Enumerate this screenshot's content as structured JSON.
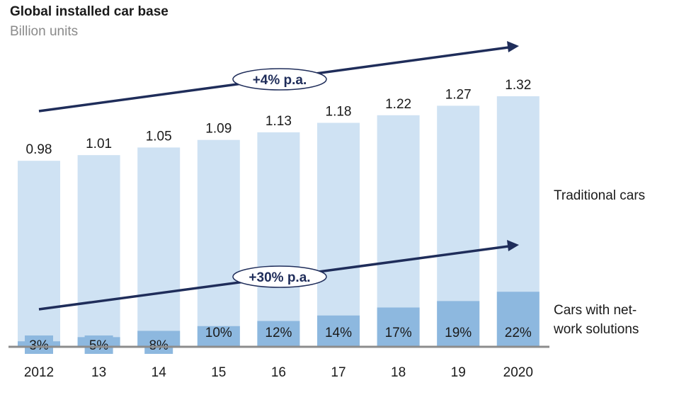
{
  "header": {
    "title": "Global installed car base",
    "subtitle": "Billion units"
  },
  "chart_data": {
    "type": "bar",
    "stacked": true,
    "categories": [
      "2012",
      "13",
      "14",
      "15",
      "16",
      "17",
      "18",
      "19",
      "2020"
    ],
    "totals": [
      0.98,
      1.01,
      1.05,
      1.09,
      1.13,
      1.18,
      1.22,
      1.27,
      1.32
    ],
    "total_labels": [
      "0.98",
      "1.01",
      "1.05",
      "1.09",
      "1.13",
      "1.18",
      "1.22",
      "1.27",
      "1.32"
    ],
    "connected_share_pct": [
      3,
      5,
      8,
      10,
      12,
      14,
      17,
      19,
      22
    ],
    "connected_labels": [
      "3%",
      "5%",
      "8%",
      "10%",
      "12%",
      "14%",
      "17%",
      "19%",
      "22%"
    ],
    "series": [
      {
        "name": "Cars with net-work solutions",
        "values": [
          0.029,
          0.051,
          0.084,
          0.109,
          0.136,
          0.165,
          0.207,
          0.241,
          0.29
        ]
      },
      {
        "name": "Traditional cars",
        "values": [
          0.951,
          0.959,
          0.966,
          0.981,
          0.994,
          1.015,
          1.013,
          1.029,
          1.03
        ]
      }
    ],
    "series_labels": {
      "traditional": "Traditional cars",
      "connected_line1": "Cars with net-",
      "connected_line2": "work solutions"
    },
    "annotations": {
      "total_growth": "+4% p.a.",
      "connected_growth": "+30% p.a."
    },
    "ylim": [
      0,
      1.32
    ],
    "colors": {
      "traditional": "#cfe2f3",
      "connected": "#8db8df",
      "arrow": "#1f2d5a",
      "axis": "#8c8c8c"
    }
  }
}
